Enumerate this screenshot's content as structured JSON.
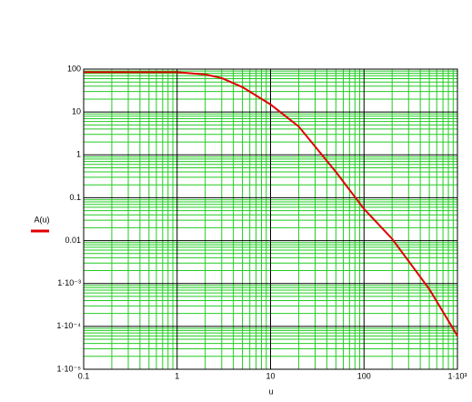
{
  "chart_data": {
    "type": "line",
    "x_label": "u",
    "xlog": true,
    "ylog": true,
    "grid": true,
    "xlim": [
      0.1,
      1000
    ],
    "ylim": [
      1e-05,
      100
    ],
    "xticks": [
      0.1,
      1,
      10,
      100,
      {
        "value": 1000,
        "label": "1·10³"
      }
    ],
    "yticks": [
      100,
      10,
      1,
      0.1,
      0.01,
      {
        "value": 0.001,
        "label": "1·10⁻³"
      },
      {
        "value": 0.0001,
        "label": "1·10⁻⁴"
      },
      {
        "value": 1e-05,
        "label": "1·10⁻⁵"
      }
    ],
    "x": [
      0.1,
      1,
      2,
      3,
      5,
      10,
      20,
      50,
      100,
      200,
      500,
      1000
    ],
    "series": [
      {
        "name": "A(u)",
        "color": "#e00000",
        "values": [
          85,
          85,
          75,
          62,
          38,
          15,
          4.6,
          0.4,
          0.055,
          0.011,
          0.00074,
          6e-05
        ]
      }
    ]
  }
}
